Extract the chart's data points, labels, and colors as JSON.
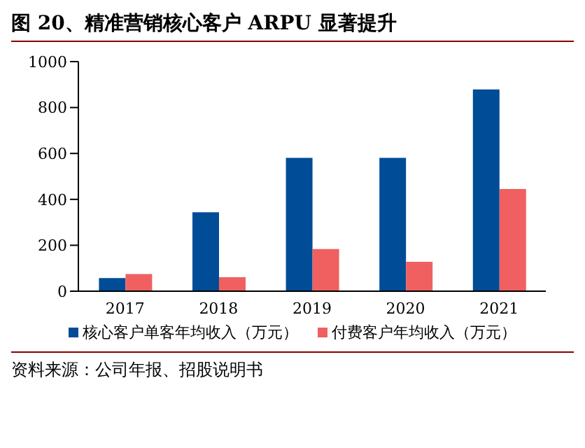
{
  "chart_data": {
    "type": "bar",
    "title": "图 20、精准营销核心客户 ARPU 显著提升",
    "categories": [
      "2017",
      "2018",
      "2019",
      "2020",
      "2021"
    ],
    "series": [
      {
        "name": "核心客户单客年均收入（万元）",
        "color": "#004c97",
        "values": [
          57,
          344,
          581,
          581,
          879
        ]
      },
      {
        "name": "付费客户年均收入（万元）",
        "color": "#f06060",
        "values": [
          75,
          61,
          184,
          128,
          445
        ]
      }
    ],
    "ylim": [
      0,
      1000
    ],
    "yticks": [
      0,
      200,
      400,
      600,
      800,
      1000
    ],
    "grid": false,
    "legend": "bottom",
    "annotations": [
      "资料来源：公司年报、招股说明书"
    ]
  }
}
